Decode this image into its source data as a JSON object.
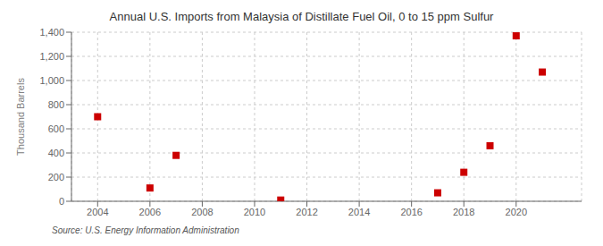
{
  "chart_data": {
    "type": "scatter",
    "title": "Annual U.S. Imports from Malaysia of Distillate Fuel Oil, 0 to 15 ppm Sulfur",
    "ylabel": "Thousand Barrels",
    "annotations": [
      "Source: U.S. Energy Information Administration"
    ],
    "x": [
      2004,
      2006,
      2007,
      2011,
      2017,
      2018,
      2019,
      2020,
      2021
    ],
    "values": [
      700,
      110,
      380,
      10,
      70,
      240,
      460,
      1370,
      1070
    ],
    "color": "#cc0000",
    "marker": "square",
    "xlim": [
      2003.0,
      2022.5
    ],
    "ylim": [
      0,
      1400
    ],
    "xticks": [
      2004,
      2006,
      2008,
      2010,
      2012,
      2014,
      2016,
      2018,
      2020
    ],
    "yticks": [
      0,
      200,
      400,
      600,
      800,
      {
        "value": 1000,
        "label": "1,000"
      },
      {
        "value": 1200,
        "label": "1,200"
      },
      {
        "value": 1400,
        "label": "1,400"
      }
    ],
    "grid": true
  }
}
